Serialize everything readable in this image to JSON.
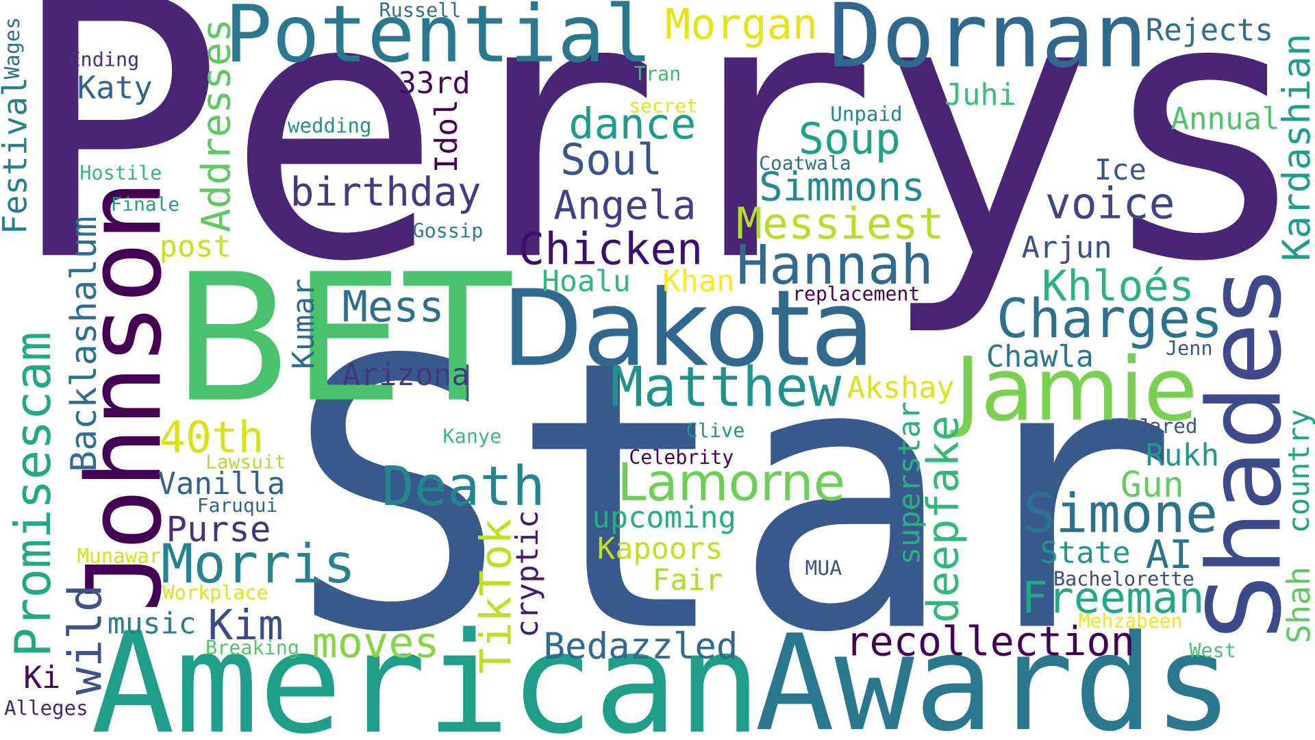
{
  "words": [
    {
      "text": "Perrys",
      "color": "#482575"
    },
    {
      "text": "Star",
      "color": "#38598c"
    },
    {
      "text": "BET",
      "color": "#4ac16d"
    },
    {
      "text": "American",
      "color": "#1f9e89"
    },
    {
      "text": "Awards",
      "color": "#2a788e"
    },
    {
      "text": "Johnson",
      "color": "#440154"
    },
    {
      "text": "Dakota",
      "color": "#31688e"
    },
    {
      "text": "Potential",
      "color": "#2a788e"
    },
    {
      "text": "Dornan",
      "color": "#31688e"
    },
    {
      "text": "Jamie",
      "color": "#7ad151"
    },
    {
      "text": "Shades",
      "color": "#3e4a89"
    },
    {
      "text": "Matthew",
      "color": "#21918c"
    },
    {
      "text": "Lamorne",
      "color": "#6ece58"
    },
    {
      "text": "Death",
      "color": "#25848e"
    },
    {
      "text": "Simone",
      "color": "#2c728e"
    },
    {
      "text": "Morris",
      "color": "#26828e"
    },
    {
      "text": "recollection",
      "color": "#440154"
    },
    {
      "text": "Bedazzled",
      "color": "#31688e"
    },
    {
      "text": "Hannah",
      "color": "#306a8e"
    },
    {
      "text": "Charges",
      "color": "#2c728e"
    },
    {
      "text": "Messiest",
      "color": "#b5de2b"
    },
    {
      "text": "Chicken",
      "color": "#3b0f70"
    },
    {
      "text": "Angela",
      "color": "#433e85"
    },
    {
      "text": "Mess",
      "color": "#2d6f8e"
    },
    {
      "text": "birthday",
      "color": "#443983"
    },
    {
      "text": "Soul",
      "color": "#3b528b"
    },
    {
      "text": "Soup",
      "color": "#1fa187"
    },
    {
      "text": "Simmons",
      "color": "#23898e"
    },
    {
      "text": "voice",
      "color": "#414487"
    },
    {
      "text": "Khloés",
      "color": "#2db27d"
    },
    {
      "text": "dance",
      "color": "#1e9b8a"
    },
    {
      "text": "Freeman",
      "color": "#22a884"
    },
    {
      "text": "TikTok",
      "color": "#bddf26"
    },
    {
      "text": "Promisescam",
      "color": "#22a884"
    },
    {
      "text": "Addresses",
      "color": "#5ec962"
    },
    {
      "text": "Kardashian",
      "color": "#1f9e89"
    },
    {
      "text": "deepfake",
      "color": "#35b779"
    },
    {
      "text": "superstar",
      "color": "#29af7f"
    },
    {
      "text": "Backlashalum",
      "color": "#2e6e8e"
    },
    {
      "text": "wild",
      "color": "#3b528b"
    },
    {
      "text": "moves",
      "color": "#86d549"
    },
    {
      "text": "40th",
      "color": "#d8e219"
    },
    {
      "text": "Morgan",
      "color": "#e5e419"
    },
    {
      "text": "Arizona",
      "color": "#453882"
    },
    {
      "text": "Purse",
      "color": "#46327e"
    },
    {
      "text": "Kim",
      "color": "#3e4989"
    },
    {
      "text": "Vanilla",
      "color": "#355f8d"
    },
    {
      "text": "upcoming",
      "color": "#26ad81"
    },
    {
      "text": "Kapoors",
      "color": "#c0df25"
    },
    {
      "text": "Arjun",
      "color": "#3d4e8a"
    },
    {
      "text": "Chawla",
      "color": "#2b758e"
    },
    {
      "text": "Rukh",
      "color": "#1f978b"
    },
    {
      "text": "Gun",
      "color": "#63cb5f"
    },
    {
      "text": "State",
      "color": "#1f968b"
    },
    {
      "text": "AI",
      "color": "#2c738e"
    },
    {
      "text": "Akshay",
      "color": "#dde318"
    },
    {
      "text": "Katy",
      "color": "#33638d"
    },
    {
      "text": "33rd",
      "color": "#46085c"
    },
    {
      "text": "Idol",
      "color": "#440154"
    },
    {
      "text": "Juhi",
      "color": "#3dbc74"
    },
    {
      "text": "Rejects",
      "color": "#2f6c8e"
    },
    {
      "text": "Annual",
      "color": "#4ec36b"
    },
    {
      "text": "Ice",
      "color": "#3a548c"
    },
    {
      "text": "music",
      "color": "#277f8e"
    },
    {
      "text": "Khan",
      "color": "#fde725"
    },
    {
      "text": "Hoalu",
      "color": "#35b779"
    },
    {
      "text": "cryptic",
      "color": "#481a6c"
    },
    {
      "text": "Kumar",
      "color": "#2f6b8e"
    },
    {
      "text": "Fair",
      "color": "#addc30"
    },
    {
      "text": "Festival",
      "color": "#287d8e"
    },
    {
      "text": "post",
      "color": "#c8e020"
    },
    {
      "text": "country",
      "color": "#20a486"
    },
    {
      "text": "Shah",
      "color": "#5ec962"
    },
    {
      "text": "Ki",
      "color": "#46085c"
    },
    {
      "text": "Alleges",
      "color": "#482475"
    },
    {
      "text": "Ending",
      "color": "#472d7b"
    },
    {
      "text": "Russell",
      "color": "#2e6f8e"
    },
    {
      "text": "Tran",
      "color": "#40bd72"
    },
    {
      "text": "secret",
      "color": "#e7e419"
    },
    {
      "text": "wedding",
      "color": "#21918c"
    },
    {
      "text": "Hostile",
      "color": "#37b878"
    },
    {
      "text": "Finale",
      "color": "#1f9f88"
    },
    {
      "text": "Gossip",
      "color": "#27808e"
    },
    {
      "text": "Unpaid",
      "color": "#25858e"
    },
    {
      "text": "Coatwala",
      "color": "#2c728e"
    },
    {
      "text": "replacement",
      "color": "#440154"
    },
    {
      "text": "Jenn",
      "color": "#39558c"
    },
    {
      "text": "Kanye",
      "color": "#3bbb75"
    },
    {
      "text": "Clive",
      "color": "#1f958b"
    },
    {
      "text": "Celebrity",
      "color": "#440154"
    },
    {
      "text": "Jared",
      "color": "#3b528b"
    },
    {
      "text": "Lawsuit",
      "color": "#b0dd2f"
    },
    {
      "text": "Faruqui",
      "color": "#33638d"
    },
    {
      "text": "Munawar",
      "color": "#d2e21b"
    },
    {
      "text": "MUA",
      "color": "#3b528b"
    },
    {
      "text": "Bachelorette",
      "color": "#3f4788"
    },
    {
      "text": "Workplace",
      "color": "#dde318"
    },
    {
      "text": "Mehzabeen",
      "color": "#f1e51d"
    },
    {
      "text": "West",
      "color": "#4ac16d"
    },
    {
      "text": "Breaking",
      "color": "#54c568"
    },
    {
      "text": "Wages",
      "color": "#2e6e8e"
    }
  ]
}
